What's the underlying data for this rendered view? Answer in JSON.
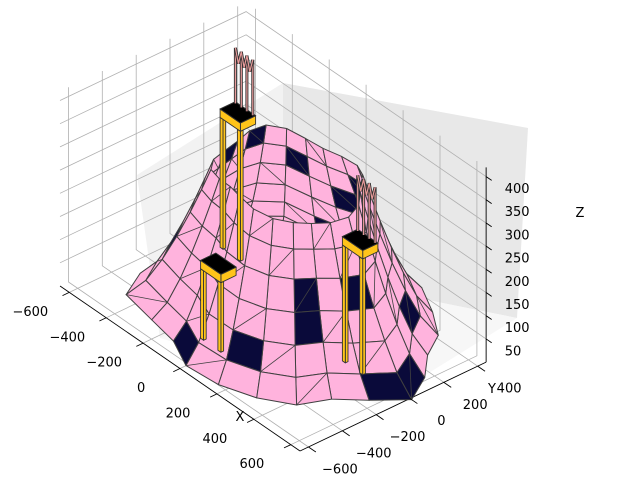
{
  "chart_data": {
    "type": "surface3d",
    "title": "",
    "xlabel": "X",
    "ylabel": "Y",
    "zlabel": "Z",
    "x_ticks": [
      "−600",
      "−400",
      "−200",
      "0",
      "200",
      "400",
      "600"
    ],
    "y_ticks": [
      "−600",
      "−400",
      "−200",
      "0",
      "200",
      "400"
    ],
    "z_ticks": [
      "50",
      "100",
      "150",
      "200",
      "250",
      "300",
      "350",
      "400"
    ],
    "xlim": [
      -650,
      650
    ],
    "ylim": [
      -650,
      450
    ],
    "zlim": [
      0,
      420
    ],
    "grid": true,
    "colors": {
      "surface": "#ffb3dd",
      "dark_panel": "#0a0a3a",
      "edge": "#404040",
      "chair_leg": "#ffc41a",
      "chair_seat": "#000000",
      "chair_back": "#e89a9a",
      "pane_left": "#f2f2f2",
      "pane_right": "#e8e8e8",
      "pane_floor": "#f7f7f7",
      "gridline": "#b0b0b0"
    },
    "objects": [
      {
        "name": "terraced-mound",
        "base_radius": 600,
        "top_radius": 300,
        "height": 300,
        "open_top": true
      },
      {
        "name": "chair-left",
        "x": -420,
        "y": 150,
        "seat_z": 280
      },
      {
        "name": "chair-front",
        "x": -40,
        "y": -380,
        "seat_z": 150
      },
      {
        "name": "chair-right",
        "x": 380,
        "y": 0,
        "seat_z": 250
      }
    ]
  }
}
